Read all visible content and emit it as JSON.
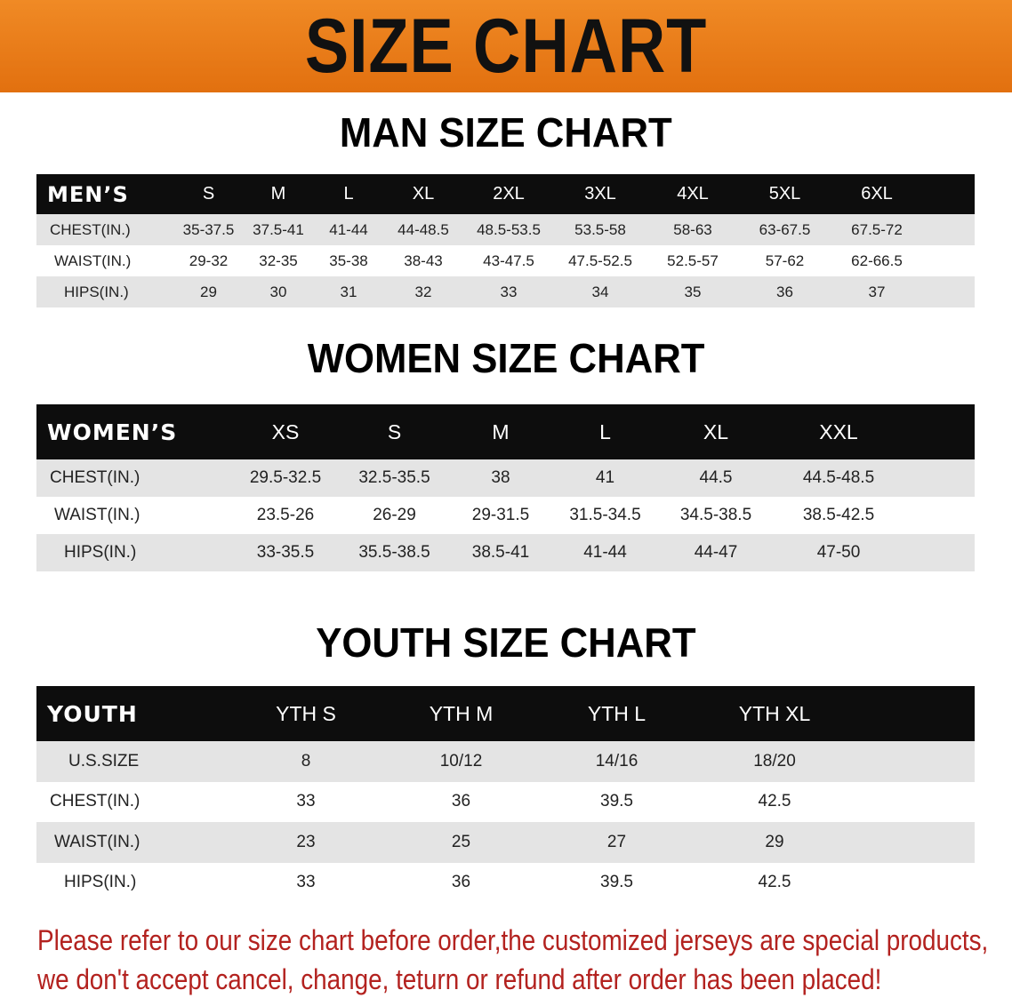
{
  "title": "SIZE CHART",
  "men": {
    "section_title": "MAN SIZE CHART",
    "header": "MEN’S",
    "sizes": [
      "S",
      "M",
      "L",
      "XL",
      "2XL",
      "3XL",
      "4XL",
      "5XL",
      "6XL"
    ],
    "rows": [
      {
        "label": "CHEST(IN.)",
        "values": [
          "35-37.5",
          "37.5-41",
          "41-44",
          "44-48.5",
          "48.5-53.5",
          "53.5-58",
          "58-63",
          "63-67.5",
          "67.5-72"
        ]
      },
      {
        "label": "WAIST(IN.)",
        "values": [
          "29-32",
          "32-35",
          "35-38",
          "38-43",
          "43-47.5",
          "47.5-52.5",
          "52.5-57",
          "57-62",
          "62-66.5"
        ]
      },
      {
        "label": "HIPS(IN.)",
        "values": [
          "29",
          "30",
          "31",
          "32",
          "33",
          "34",
          "35",
          "36",
          "37"
        ]
      }
    ]
  },
  "women": {
    "section_title": "WOMEN SIZE CHART",
    "header": "WOMEN’S",
    "sizes": [
      "XS",
      "S",
      "M",
      "L",
      "XL",
      "XXL"
    ],
    "rows": [
      {
        "label": "CHEST(IN.)",
        "values": [
          "29.5-32.5",
          "32.5-35.5",
          "38",
          "41",
          "44.5",
          "44.5-48.5"
        ]
      },
      {
        "label": "WAIST(IN.)",
        "values": [
          "23.5-26",
          "26-29",
          "29-31.5",
          "31.5-34.5",
          "34.5-38.5",
          "38.5-42.5"
        ]
      },
      {
        "label": "HIPS(IN.)",
        "values": [
          "33-35.5",
          "35.5-38.5",
          "38.5-41",
          "41-44",
          "44-47",
          "47-50"
        ]
      }
    ]
  },
  "youth": {
    "section_title": "YOUTH SIZE CHART",
    "header": "YOUTH",
    "sizes": [
      "YTH S",
      "YTH M",
      "YTH L",
      "YTH XL"
    ],
    "rows": [
      {
        "label": "U.S.SIZE",
        "values": [
          "8",
          "10/12",
          "14/16",
          "18/20"
        ]
      },
      {
        "label": "CHEST(IN.)",
        "values": [
          "33",
          "36",
          "39.5",
          "42.5"
        ]
      },
      {
        "label": "WAIST(IN.)",
        "values": [
          "23",
          "25",
          "27",
          "29"
        ]
      },
      {
        "label": "HIPS(IN.)",
        "values": [
          "33",
          "36",
          "39.5",
          "42.5"
        ]
      }
    ]
  },
  "note": [
    "Please refer to our size chart before order,the customized jerseys are special products,",
    "we don't accept cancel, change, teturn or refund after order has been placed!"
  ],
  "colors": {
    "banner": "#e8781a",
    "header_bg": "#0d0d0d",
    "stripe": "#e4e4e4",
    "note": "#b3221f"
  }
}
